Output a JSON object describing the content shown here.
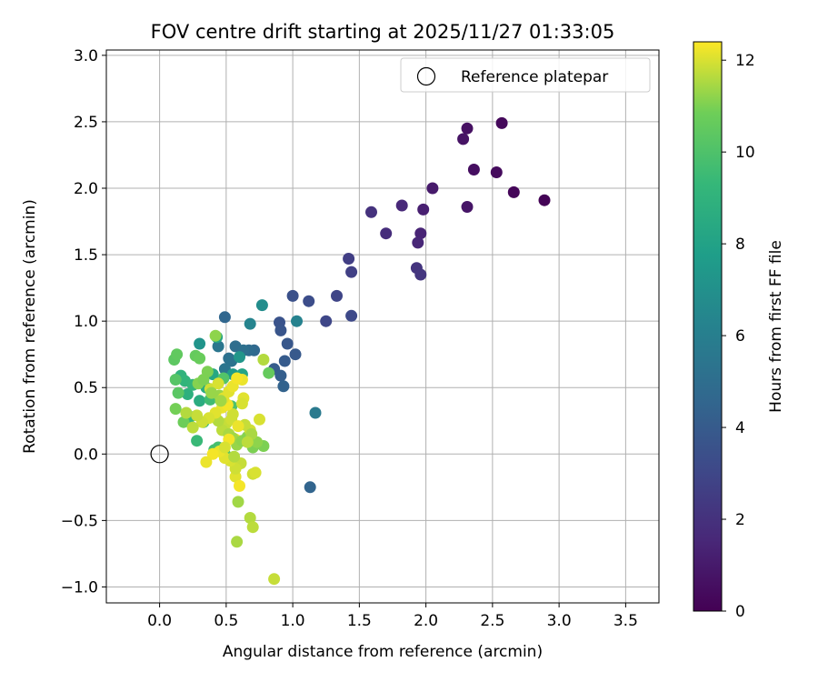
{
  "chart_data": {
    "type": "scatter",
    "title": "FOV centre drift starting at 2025/11/27 01:33:05",
    "xlabel": "Angular distance from reference (arcmin)",
    "ylabel": "Rotation from reference (arcmin)",
    "xlim": [
      -0.4,
      3.75
    ],
    "ylim": [
      -1.12,
      3.04
    ],
    "xticks": [
      0.0,
      0.5,
      1.0,
      1.5,
      2.0,
      2.5,
      3.0,
      3.5
    ],
    "xtick_labels": [
      "0.0",
      "0.5",
      "1.0",
      "1.5",
      "2.0",
      "2.5",
      "3.0",
      "3.5"
    ],
    "yticks": [
      -1.0,
      -0.5,
      0.0,
      0.5,
      1.0,
      1.5,
      2.0,
      2.5,
      3.0
    ],
    "ytick_labels": [
      "−1.0",
      "−0.5",
      "0.0",
      "0.5",
      "1.0",
      "1.5",
      "2.0",
      "2.5",
      "3.0"
    ],
    "grid": true,
    "legend": {
      "position": "top-right",
      "entries": [
        "Reference platepar"
      ]
    },
    "colorbar": {
      "label": "Hours from first FF file",
      "colormap": "viridis",
      "range": [
        0,
        12.4
      ],
      "ticks": [
        0,
        2,
        4,
        6,
        8,
        10,
        12
      ],
      "tick_labels": [
        "0",
        "2",
        "4",
        "6",
        "8",
        "10",
        "12"
      ]
    },
    "reference_point": {
      "x": 0.0,
      "y": 0.0,
      "label": "Reference platepar"
    },
    "points": [
      [
        2.89,
        1.91,
        0.1
      ],
      [
        2.66,
        1.97,
        0.2
      ],
      [
        2.57,
        2.49,
        0.3
      ],
      [
        2.53,
        2.12,
        0.4
      ],
      [
        2.36,
        2.14,
        0.5
      ],
      [
        2.31,
        2.45,
        0.6
      ],
      [
        2.28,
        2.37,
        0.7
      ],
      [
        2.31,
        1.86,
        0.8
      ],
      [
        2.05,
        2.0,
        1.0
      ],
      [
        1.98,
        1.84,
        1.2
      ],
      [
        1.96,
        1.66,
        1.4
      ],
      [
        1.94,
        1.59,
        1.5
      ],
      [
        1.82,
        1.87,
        1.6
      ],
      [
        1.7,
        1.66,
        1.8
      ],
      [
        1.59,
        1.82,
        2.0
      ],
      [
        1.93,
        1.4,
        2.1
      ],
      [
        1.96,
        1.35,
        2.2
      ],
      [
        1.42,
        1.47,
        2.6
      ],
      [
        1.44,
        1.37,
        2.7
      ],
      [
        1.33,
        1.19,
        2.9
      ],
      [
        1.25,
        1.0,
        3.0
      ],
      [
        1.44,
        1.04,
        3.1
      ],
      [
        1.12,
        1.15,
        3.3
      ],
      [
        1.0,
        1.19,
        3.5
      ],
      [
        0.9,
        0.99,
        3.6
      ],
      [
        0.91,
        0.93,
        3.7
      ],
      [
        0.96,
        0.83,
        3.8
      ],
      [
        1.02,
        0.75,
        3.9
      ],
      [
        0.94,
        0.7,
        4.0
      ],
      [
        0.86,
        0.64,
        4.1
      ],
      [
        0.91,
        0.59,
        4.2
      ],
      [
        0.93,
        0.51,
        4.4
      ],
      [
        1.13,
        -0.25,
        4.5
      ],
      [
        0.49,
        1.03,
        4.6
      ],
      [
        0.71,
        0.78,
        4.7
      ],
      [
        0.67,
        0.78,
        4.9
      ],
      [
        0.57,
        0.81,
        5.0
      ],
      [
        0.63,
        0.78,
        5.1
      ],
      [
        0.52,
        0.72,
        5.2
      ],
      [
        0.54,
        0.7,
        5.3
      ],
      [
        0.49,
        0.64,
        5.4
      ],
      [
        0.44,
        0.81,
        5.5
      ],
      [
        1.17,
        0.31,
        5.7
      ],
      [
        1.03,
        1.0,
        6.2
      ],
      [
        0.68,
        0.98,
        6.3
      ],
      [
        0.77,
        1.12,
        6.8
      ],
      [
        0.3,
        0.83,
        7.2
      ],
      [
        0.6,
        0.73,
        7.3
      ],
      [
        0.55,
        0.6,
        7.6
      ],
      [
        0.43,
        0.88,
        8.0
      ],
      [
        0.62,
        0.6,
        8.1
      ],
      [
        0.4,
        0.6,
        8.3
      ],
      [
        0.35,
        0.5,
        8.5
      ],
      [
        0.3,
        0.4,
        8.6
      ],
      [
        0.21,
        0.45,
        8.8
      ],
      [
        0.16,
        0.59,
        9.0
      ],
      [
        0.19,
        0.55,
        9.1
      ],
      [
        0.25,
        0.52,
        9.2
      ],
      [
        0.23,
        0.28,
        9.3
      ],
      [
        0.28,
        0.1,
        9.4
      ],
      [
        0.33,
        0.24,
        9.5
      ],
      [
        0.38,
        0.41,
        9.6
      ],
      [
        0.41,
        0.03,
        9.7
      ],
      [
        0.44,
        0.05,
        9.8
      ],
      [
        0.49,
        0.0,
        9.9
      ],
      [
        0.54,
        0.36,
        10.0
      ],
      [
        0.48,
        0.57,
        10.1
      ],
      [
        0.12,
        0.56,
        10.2
      ],
      [
        0.14,
        0.46,
        10.3
      ],
      [
        0.11,
        0.71,
        10.4
      ],
      [
        0.13,
        0.75,
        10.5
      ],
      [
        0.27,
        0.74,
        10.6
      ],
      [
        0.3,
        0.72,
        10.7
      ],
      [
        0.18,
        0.24,
        10.8
      ],
      [
        0.12,
        0.34,
        10.9
      ],
      [
        0.36,
        0.62,
        11.0
      ],
      [
        0.29,
        0.53,
        11.1
      ],
      [
        0.42,
        0.89,
        11.2
      ],
      [
        0.45,
        0.44,
        11.3
      ],
      [
        0.59,
        -0.36,
        11.4
      ],
      [
        0.58,
        -0.66,
        11.5
      ],
      [
        0.68,
        -0.48,
        11.6
      ],
      [
        0.7,
        -0.55,
        11.7
      ],
      [
        0.86,
        -0.94,
        11.8
      ],
      [
        0.7,
        -0.15,
        11.9
      ],
      [
        0.72,
        -0.14,
        12.0
      ],
      [
        0.57,
        -0.17,
        12.1
      ],
      [
        0.62,
        0.56,
        12.2
      ],
      [
        0.57,
        0.11,
        12.3
      ],
      [
        0.63,
        0.42,
        12.1
      ],
      [
        0.62,
        0.38,
        12.0
      ],
      [
        0.55,
        0.3,
        11.9
      ],
      [
        0.5,
        0.23,
        11.8
      ],
      [
        0.47,
        0.18,
        11.7
      ],
      [
        0.44,
        0.25,
        11.6
      ],
      [
        0.52,
        0.15,
        11.5
      ],
      [
        0.55,
        0.12,
        11.4
      ],
      [
        0.58,
        0.07,
        11.3
      ],
      [
        0.62,
        0.1,
        11.2
      ],
      [
        0.66,
        0.13,
        11.1
      ],
      [
        0.7,
        0.05,
        11.0
      ],
      [
        0.75,
        0.26,
        12.0
      ],
      [
        0.68,
        0.18,
        11.9
      ],
      [
        0.64,
        0.22,
        11.8
      ],
      [
        0.78,
        0.71,
        11.6
      ],
      [
        0.82,
        0.61,
        10.6
      ],
      [
        0.78,
        0.06,
        11.0
      ],
      [
        0.73,
        0.09,
        11.2
      ],
      [
        0.69,
        0.15,
        11.5
      ],
      [
        0.66,
        0.09,
        11.7
      ],
      [
        0.61,
        -0.07,
        11.8
      ],
      [
        0.57,
        -0.11,
        11.9
      ],
      [
        0.53,
        -0.05,
        12.0
      ],
      [
        0.49,
        -0.03,
        12.1
      ],
      [
        0.45,
        0.02,
        12.2
      ],
      [
        0.4,
        0.0,
        12.3
      ],
      [
        0.35,
        -0.06,
        12.2
      ],
      [
        0.38,
        0.49,
        11.9
      ],
      [
        0.44,
        0.53,
        12.0
      ],
      [
        0.52,
        0.47,
        12.1
      ],
      [
        0.55,
        0.51,
        12.2
      ],
      [
        0.58,
        0.57,
        12.3
      ],
      [
        0.47,
        0.35,
        12.2
      ],
      [
        0.42,
        0.31,
        12.1
      ],
      [
        0.37,
        0.27,
        12.0
      ],
      [
        0.32,
        0.24,
        11.9
      ],
      [
        0.28,
        0.29,
        11.8
      ],
      [
        0.25,
        0.2,
        11.7
      ],
      [
        0.2,
        0.31,
        11.6
      ],
      [
        0.51,
        0.37,
        12.3
      ],
      [
        0.48,
        0.42,
        12.1
      ],
      [
        0.54,
        0.26,
        11.9
      ],
      [
        0.6,
        -0.24,
        12.3
      ],
      [
        0.56,
        -0.02,
        11.6
      ],
      [
        0.59,
        0.21,
        12.2
      ],
      [
        0.52,
        0.11,
        12.3
      ],
      [
        0.49,
        0.05,
        12.0
      ],
      [
        0.46,
        0.4,
        11.4
      ],
      [
        0.39,
        0.46,
        11.3
      ],
      [
        0.33,
        0.56,
        11.0
      ]
    ]
  }
}
